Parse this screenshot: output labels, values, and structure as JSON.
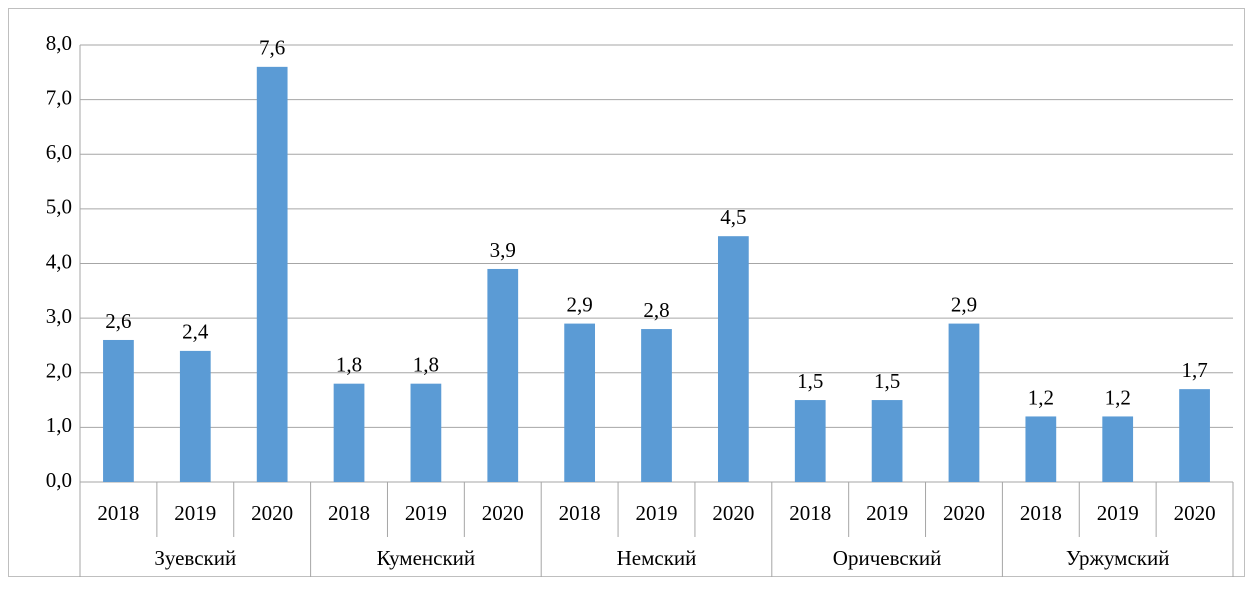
{
  "chart_data": {
    "type": "bar",
    "categories": [
      "2018",
      "2019",
      "2020",
      "2018",
      "2019",
      "2020",
      "2018",
      "2019",
      "2020",
      "2018",
      "2019",
      "2020",
      "2018",
      "2019",
      "2020"
    ],
    "groups": [
      "Зуевский",
      "Куменский",
      "Немский",
      "Оричевский",
      "Уржумский"
    ],
    "values": [
      2.6,
      2.4,
      7.6,
      1.8,
      1.8,
      3.9,
      2.9,
      2.8,
      4.5,
      1.5,
      1.5,
      2.9,
      1.2,
      1.2,
      1.7
    ],
    "value_labels": [
      "2,6",
      "2,4",
      "7,6",
      "1,8",
      "1,8",
      "3,9",
      "2,9",
      "2,8",
      "4,5",
      "1,5",
      "1,5",
      "2,9",
      "1,2",
      "1,2",
      "1,7"
    ],
    "color": "#5b9bd5",
    "ylim": [
      0,
      8
    ],
    "yticks": [
      {
        "value": 0,
        "label": "0,0"
      },
      {
        "value": 1,
        "label": "1,0"
      },
      {
        "value": 2,
        "label": "2,0"
      },
      {
        "value": 3,
        "label": "3,0"
      },
      {
        "value": 4,
        "label": "4,0"
      },
      {
        "value": 5,
        "label": "5,0"
      },
      {
        "value": 6,
        "label": "6,0"
      },
      {
        "value": 7,
        "label": "7,0"
      },
      {
        "value": 8,
        "label": "8,0"
      }
    ],
    "grid": true
  }
}
